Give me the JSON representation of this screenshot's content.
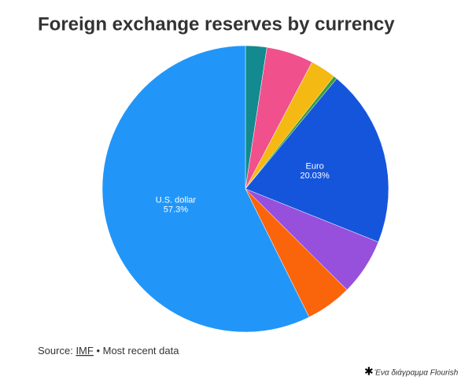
{
  "chart_data": {
    "type": "pie",
    "title": "Foreign exchange reserves by currency",
    "categories": [
      null,
      null,
      null,
      null,
      "Euro",
      null,
      null,
      "U.S. dollar"
    ],
    "values": [
      2.4,
      5.3,
      2.9,
      0.4,
      20.03,
      6.4,
      5.2,
      57.3
    ],
    "value_labels": [
      null,
      null,
      null,
      null,
      "20.03%",
      null,
      null,
      "57.3%"
    ],
    "colors": [
      "#138a8f",
      "#f0508c",
      "#f5b914",
      "#3a9e3a",
      "#1555dc",
      "#9650dc",
      "#fa640a",
      "#2196f8"
    ],
    "source": {
      "prefix": "Source:",
      "link": "IMF",
      "suffix": "• Most recent data"
    },
    "credit": "Ένα διάγραμμα Flourish"
  }
}
